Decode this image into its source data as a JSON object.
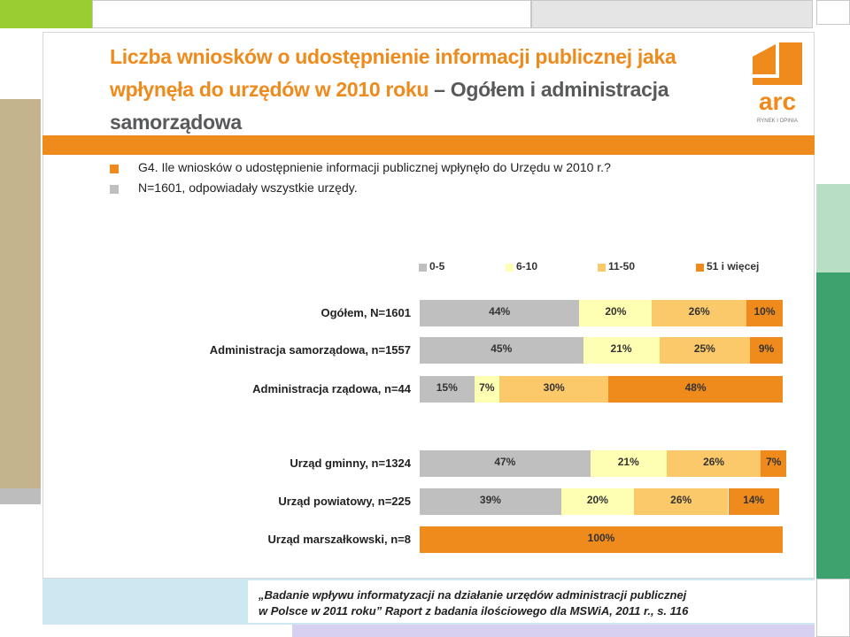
{
  "title": {
    "line1_orange": "Liczba wniosków o udostępnienie informacji publicznej jaka",
    "line2_orange": "wpłynęła do urzędów w 2010 roku",
    "line2_grey": " – Ogółem i administracja",
    "line3_grey": "samorządowa"
  },
  "question": {
    "line1": "G4. Ile wniosków o udostępnienie informacji publicznej wpłynęło do Urzędu w 2010 r.?",
    "line2": "N=1601, odpowiadały wszystkie urzędy."
  },
  "logo": {
    "text": "arc",
    "subtext": "RYNEK I OPINIA"
  },
  "footer": {
    "line1": "„Badanie wpływu informatyzacji na działanie urzędów administracji publicznej",
    "line2": "w Polsce w 2011 roku” Raport z badania ilościowego dla MSWiA, 2011 r., s. 116"
  },
  "colors": {
    "accent": "#ef8a1c",
    "s1": "#bfbfbf",
    "s2": "#ffffb3",
    "s3": "#fbc96a",
    "s4": "#ef8a1c"
  },
  "chart_data": {
    "type": "bar",
    "orientation": "horizontal",
    "stacked": true,
    "percent": true,
    "legend_position": "top",
    "grid": false,
    "categories": [
      "Ogółem, N=1601",
      "Administracja samorządowa, n=1557",
      "Administracja rządowa, n=44",
      "Urząd gminny, n=1324",
      "Urząd powiatowy, n=225",
      "Urząd marszałkowski, n=8"
    ],
    "series": [
      {
        "name": "0-5",
        "values": [
          44,
          45,
          15,
          47,
          39,
          0
        ]
      },
      {
        "name": "6-10",
        "values": [
          20,
          21,
          7,
          21,
          20,
          0
        ]
      },
      {
        "name": "11-50",
        "values": [
          26,
          25,
          30,
          26,
          26,
          0
        ]
      },
      {
        "name": "51 i więcej",
        "values": [
          10,
          9,
          48,
          7,
          14,
          100
        ]
      }
    ]
  }
}
